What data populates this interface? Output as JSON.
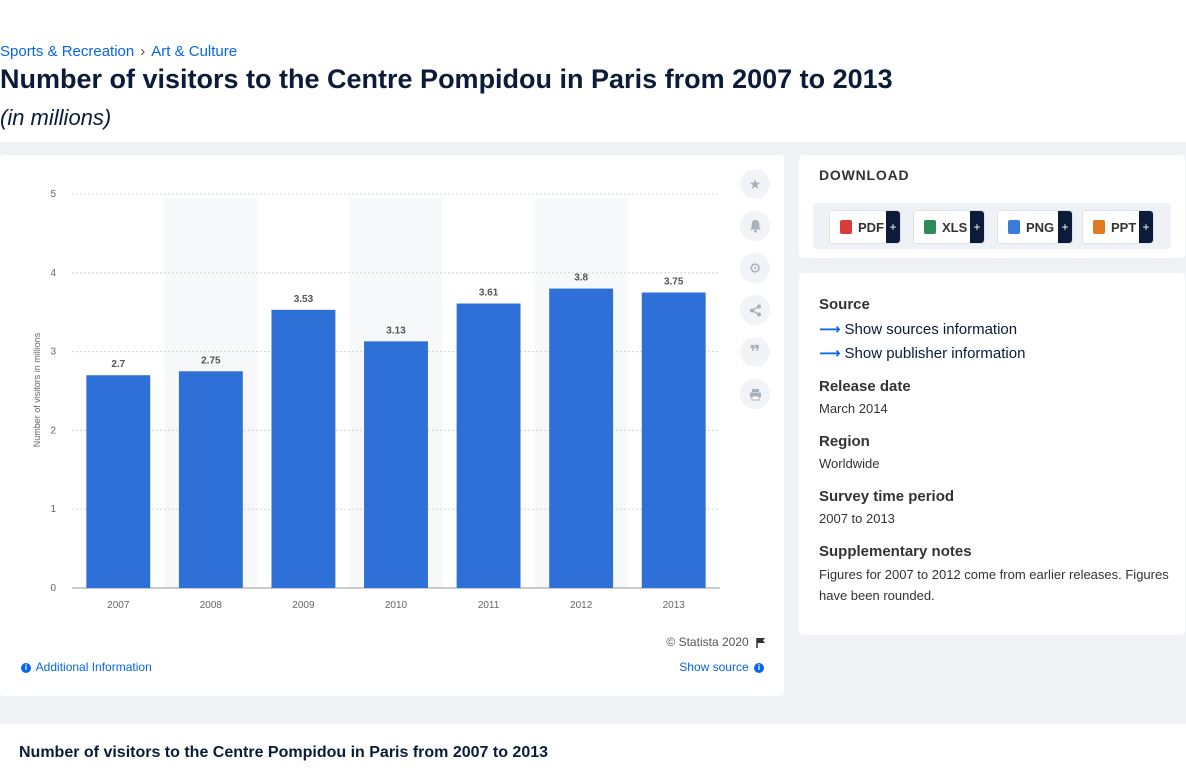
{
  "breadcrumb": {
    "items": [
      "Sports & Recreation",
      "Art & Culture"
    ],
    "separator": "›"
  },
  "page": {
    "title": "Number of visitors to the Centre Pompidou in Paris from 2007 to 2013",
    "subtitle": "(in millions)"
  },
  "chart_data": {
    "type": "bar",
    "title": "Number of visitors to the Centre Pompidou in Paris from 2007 to 2013",
    "xlabel": "",
    "ylabel": "Number of visitors in millions",
    "categories": [
      "2007",
      "2008",
      "2009",
      "2010",
      "2011",
      "2012",
      "2013"
    ],
    "values": [
      2.7,
      2.75,
      3.53,
      3.13,
      3.61,
      3.8,
      3.75
    ],
    "data_labels": [
      "2.7",
      "2.75",
      "3.53",
      "3.13",
      "3.61",
      "3.8",
      "3.75"
    ],
    "y_ticks": [
      "0",
      "1",
      "2",
      "3",
      "4",
      "5"
    ],
    "ylim": [
      0,
      5
    ],
    "grid": true,
    "bar_color": "#2f6fd8",
    "label_color": "#555555"
  },
  "chart_footer": {
    "copyright": "© Statista 2020",
    "additional_info": "Additional Information",
    "show_source": "Show source"
  },
  "side_tools": [
    "star-icon",
    "bell-icon",
    "gear-icon",
    "share-icon",
    "quote-icon",
    "print-icon"
  ],
  "download": {
    "title": "DOWNLOAD",
    "buttons": [
      {
        "label": "PDF",
        "plus": "+",
        "color": "#d93b3b"
      },
      {
        "label": "XLS",
        "plus": "+",
        "color": "#2e8b57"
      },
      {
        "label": "PNG",
        "plus": "+",
        "color": "#3a7bd5"
      },
      {
        "label": "PPT",
        "plus": "+",
        "color": "#e07b24"
      }
    ]
  },
  "meta": {
    "source_label": "Source",
    "show_sources": "Show sources information",
    "show_publisher": "Show publisher information",
    "release_date_label": "Release date",
    "release_date": "March 2014",
    "region_label": "Region",
    "region": "Worldwide",
    "survey_label": "Survey time period",
    "survey_period": "2007 to 2013",
    "notes_label": "Supplementary notes",
    "notes": "Figures for 2007 to 2012 come from earlier releases. Figures have been rounded."
  },
  "bottom": {
    "title": "Number of visitors to the Centre Pompidou in Paris from 2007 to 2013"
  },
  "colors": {
    "accent": "#0666e5",
    "dark": "#0b1b39"
  }
}
